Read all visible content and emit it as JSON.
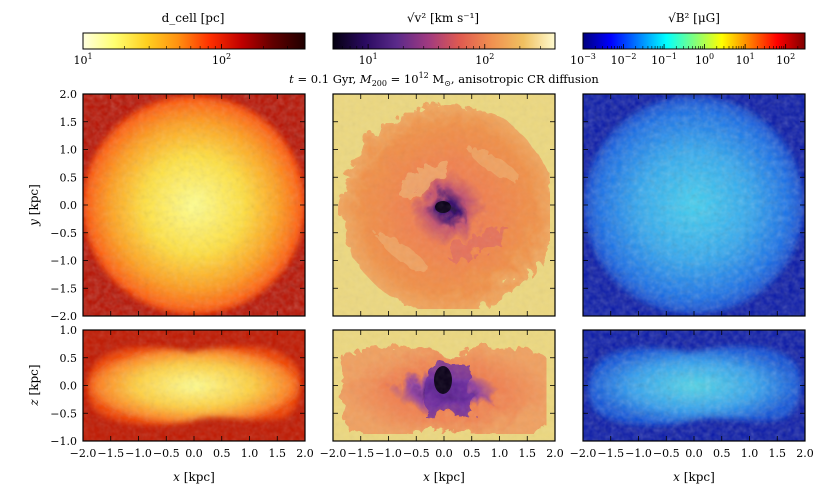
{
  "caption": "t = 0.1 Gyr, M200 = 10^12 M⊙, anisotropic CR diffusion",
  "colors": {
    "hot": [
      "#ffffe0",
      "#ffff70",
      "#ffd020",
      "#ff9010",
      "#ff3000",
      "#c00000",
      "#600000",
      "#200000"
    ],
    "plasma": [
      "#050010",
      "#2a0a60",
      "#5a2a8a",
      "#a03a80",
      "#e05a50",
      "#f09050",
      "#f0c060",
      "#fffbd0"
    ],
    "jet": [
      "#00007f",
      "#0000ff",
      "#007fff",
      "#00ffff",
      "#7fff7f",
      "#ffff00",
      "#ff7f00",
      "#ff0000",
      "#7f0000"
    ]
  },
  "chart_data": [
    {
      "type": "heatmap",
      "panel": "top-left",
      "quantity": "cell size",
      "colorbar_label": "d_cell [pc]",
      "colorbar_scale": "log",
      "colorbar_range": [
        10,
        400
      ],
      "colorbar_ticks": [
        "10^1",
        "10^2"
      ],
      "colormap": "hot (reversed)",
      "xlim": [
        -2.0,
        2.0
      ],
      "ylim": [
        -2.0,
        2.0
      ],
      "xlabel": "",
      "ylabel": "y [kpc]",
      "xticks": [],
      "yticks": [
        "−2.0",
        "−1.5",
        "−1.0",
        "−0.5",
        "0.0",
        "0.5",
        "1.0",
        "1.5",
        "2.0"
      ],
      "view": "face-on"
    },
    {
      "type": "heatmap",
      "panel": "top-middle",
      "quantity": "velocity",
      "colorbar_label": "√v² [km s⁻¹]",
      "colorbar_scale": "log",
      "colorbar_range": [
        5,
        400
      ],
      "colorbar_ticks": [
        "10^1",
        "10^2"
      ],
      "colormap": "plasma-like",
      "xlim": [
        -2.0,
        2.0
      ],
      "ylim": [
        -2.0,
        2.0
      ],
      "view": "face-on"
    },
    {
      "type": "heatmap",
      "panel": "top-right",
      "quantity": "magnetic field",
      "colorbar_label": "√B² [μG]",
      "colorbar_scale": "log",
      "colorbar_range": [
        0.001,
        300
      ],
      "colorbar_ticks": [
        "10^-3",
        "10^-2",
        "10^-1",
        "10^0",
        "10^1",
        "10^2"
      ],
      "colormap": "jet",
      "xlim": [
        -2.0,
        2.0
      ],
      "ylim": [
        -2.0,
        2.0
      ],
      "view": "face-on"
    },
    {
      "type": "heatmap",
      "panel": "bottom-left",
      "quantity": "cell size",
      "xlim": [
        -2.0,
        2.0
      ],
      "ylim": [
        -1.0,
        1.0
      ],
      "xlabel": "x [kpc]",
      "ylabel": "z [kpc]",
      "xticks": [
        "−2.0",
        "−1.5",
        "−1.0",
        "−0.5",
        "0.0",
        "0.5",
        "1.0",
        "1.5",
        "2.0"
      ],
      "yticks": [
        "−1.0",
        "−0.5",
        "0.0",
        "0.5",
        "1.0"
      ],
      "view": "edge-on"
    },
    {
      "type": "heatmap",
      "panel": "bottom-middle",
      "quantity": "velocity",
      "xlim": [
        -2.0,
        2.0
      ],
      "ylim": [
        -1.0,
        1.0
      ],
      "xlabel": "x [kpc]",
      "xticks": [
        "−2.0",
        "−1.5",
        "−1.0",
        "−0.5",
        "0.0",
        "0.5",
        "1.0",
        "1.5",
        "2.0"
      ],
      "view": "edge-on"
    },
    {
      "type": "heatmap",
      "panel": "bottom-right",
      "quantity": "magnetic field",
      "xlim": [
        -2.0,
        2.0
      ],
      "ylim": [
        -1.0,
        1.0
      ],
      "xlabel": "x [kpc]",
      "xticks": [
        "−2.0",
        "−1.5",
        "−1.0",
        "−0.5",
        "0.0",
        "0.5",
        "1.0",
        "1.5",
        "2.0"
      ],
      "view": "edge-on"
    }
  ]
}
